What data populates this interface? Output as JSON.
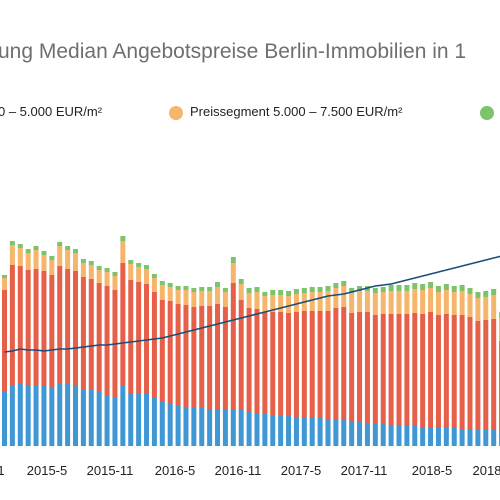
{
  "chart_data": {
    "type": "bar",
    "title": "ung Median Angebotspreise Berlin-Immobilien in 1",
    "legend": [
      {
        "label": "0 – 5.000 EUR/m²",
        "color": "#3f98d5"
      },
      {
        "label": "Preissegment 5.000 – 7.500 EUR/m²",
        "color": "#f5b56b"
      },
      {
        "label": "",
        "color": "#7cc36a"
      }
    ],
    "x_tick_labels": [
      "1",
      "2015-5",
      "2015-11",
      "2016-5",
      "2016-11",
      "2017-5",
      "2017-11",
      "2018-5",
      "2018"
    ],
    "grid": false,
    "series": [
      {
        "name": "",
        "color": "#3f98d5",
        "values": [
          54,
          61,
          62,
          61,
          60,
          61,
          59,
          62,
          62,
          61,
          57,
          56,
          55,
          51,
          49,
          60,
          53,
          52,
          52,
          48,
          44,
          42,
          40,
          39,
          38,
          38,
          37,
          37,
          37,
          36,
          37,
          35,
          33,
          32,
          31,
          30,
          30,
          29,
          29,
          28,
          28,
          27,
          27,
          26,
          25,
          24,
          23,
          22,
          22,
          21,
          21,
          20,
          20,
          19,
          19,
          18,
          18,
          18,
          17,
          17,
          16,
          16,
          16,
          15
        ]
      },
      {
        "name": "",
        "color": "#e65f49",
        "values": [
          102,
          120,
          118,
          115,
          117,
          114,
          112,
          118,
          115,
          114,
          112,
          111,
          108,
          109,
          107,
          123,
          113,
          112,
          110,
          106,
          102,
          103,
          102,
          102,
          101,
          102,
          103,
          105,
          102,
          127,
          109,
          103,
          104,
          102,
          103,
          104,
          103,
          105,
          106,
          107,
          107,
          108,
          111,
          113,
          108,
          110,
          111,
          109,
          110,
          111,
          111,
          112,
          113,
          113,
          115,
          113,
          114,
          113,
          114,
          112,
          109,
          110,
          111,
          90
        ]
      },
      {
        "name": "",
        "color": "#f5b56b",
        "values": [
          12,
          20,
          18,
          17,
          19,
          16,
          15,
          20,
          19,
          18,
          14,
          14,
          13,
          14,
          14,
          22,
          16,
          15,
          15,
          14,
          15,
          14,
          14,
          15,
          15,
          15,
          15,
          17,
          15,
          20,
          16,
          15,
          17,
          16,
          17,
          17,
          17,
          18,
          18,
          19,
          19,
          20,
          20,
          21,
          20,
          21,
          21,
          22,
          22,
          23,
          23,
          23,
          24,
          24,
          24,
          23,
          24,
          23,
          24,
          23,
          23,
          23,
          24,
          23
        ]
      },
      {
        "name": "",
        "color": "#7cc36a",
        "values": [
          3,
          4,
          4,
          4,
          4,
          4,
          4,
          4,
          4,
          4,
          4,
          4,
          4,
          4,
          4,
          5,
          4,
          4,
          4,
          4,
          4,
          4,
          4,
          4,
          4,
          4,
          4,
          5,
          4,
          6,
          5,
          5,
          5,
          4,
          5,
          5,
          5,
          5,
          5,
          5,
          5,
          5,
          5,
          5,
          5,
          5,
          5,
          5,
          5,
          6,
          6,
          6,
          6,
          6,
          6,
          6,
          6,
          6,
          6,
          6,
          6,
          6,
          6,
          6
        ]
      },
      {
        "name": "",
        "color": "#1c4e7a",
        "type": "line",
        "values": [
          94,
          95,
          97,
          96,
          96,
          95,
          96,
          97,
          97,
          98,
          99,
          100,
          101,
          101,
          102,
          103,
          104,
          105,
          106,
          107,
          108,
          110,
          112,
          114,
          116,
          118,
          120,
          122,
          124,
          126,
          128,
          130,
          132,
          134,
          136,
          138,
          140,
          142,
          144,
          146,
          148,
          150,
          151,
          152,
          154,
          156,
          158,
          160,
          161,
          162,
          164,
          166,
          168,
          170,
          172,
          174,
          176,
          178,
          180,
          182,
          184,
          186,
          188,
          190
        ]
      }
    ]
  }
}
